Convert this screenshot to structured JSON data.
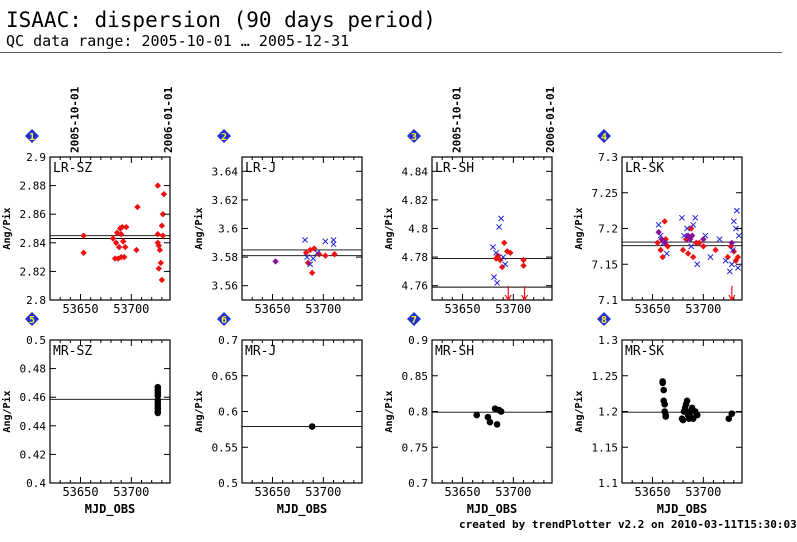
{
  "header": {
    "title": "ISAAC: dispersion (90 days period)",
    "subtitle": "QC data range: 2005-10-01 … 2005-12-31"
  },
  "footer": {
    "credit": "created by trendPlotter v2.2 on 2010-03-11T15:30:03"
  },
  "colors": {
    "red": "#ee1111",
    "blue": "#2222dd",
    "purple": "#881199",
    "black": "#000000",
    "badge": "#1f2fd0",
    "badge_text": "#ffee33"
  },
  "chart_data": {
    "type": "scatter",
    "grid": false,
    "date_markers": [
      {
        "label": "2005-10-01",
        "mjd": 53644
      },
      {
        "label": "2006-01-01",
        "mjd": 53736
      }
    ],
    "panels": [
      {
        "number": "1",
        "label": "LR-SZ",
        "xlabel": "",
        "ylabel": "Ang/Pix",
        "xlim": [
          53620,
          53738
        ],
        "ylim": [
          2.8,
          2.9
        ],
        "xticks": [
          "53650",
          "53700"
        ],
        "yticks": [
          "2.8",
          "2.82",
          "2.84",
          "2.86",
          "2.88",
          "2.9"
        ],
        "show_date_markers": true,
        "ref_lines": [
          2.843,
          2.845
        ],
        "series": [
          {
            "marker": "diamond",
            "color": "red",
            "x": [
              53653,
              53653,
              53682,
              53684,
              53685,
              53686,
              53687,
              53688,
              53689,
              53690,
              53690,
              53691,
              53692,
              53693,
              53694,
              53695,
              53705,
              53706,
              53726,
              53726,
              53727,
              53728,
              53729,
              53730,
              53730,
              53731,
              53732,
              53731,
              53727,
              53726
            ],
            "y": [
              2.845,
              2.833,
              2.843,
              2.829,
              2.84,
              2.847,
              2.829,
              2.837,
              2.85,
              2.83,
              2.846,
              2.851,
              2.841,
              2.83,
              2.837,
              2.851,
              2.835,
              2.865,
              2.88,
              2.84,
              2.838,
              2.835,
              2.826,
              2.814,
              2.852,
              2.845,
              2.874,
              2.86,
              2.822,
              2.846
            ]
          }
        ]
      },
      {
        "number": "2",
        "label": "LR-J",
        "xlabel": "",
        "ylabel": "Ang/Pix",
        "xlim": [
          53620,
          53738
        ],
        "ylim": [
          3.55,
          3.65
        ],
        "xticks": [
          "53650",
          "53700"
        ],
        "yticks": [
          "3.56",
          "3.58",
          "3.6",
          "3.62",
          "3.64"
        ],
        "show_date_markers": false,
        "ref_lines": [
          3.581,
          3.585
        ],
        "series": [
          {
            "marker": "diamond",
            "color": "red",
            "x": [
              53683,
              53685,
              53687,
              53689,
              53691,
              53696,
              53702,
              53711
            ],
            "y": [
              3.583,
              3.576,
              3.585,
              3.569,
              3.586,
              3.582,
              3.581,
              3.582
            ]
          },
          {
            "marker": "cross",
            "color": "blue",
            "x": [
              53682,
              53684,
              53687,
              53690,
              53694,
              53702,
              53710,
              53710
            ],
            "y": [
              3.592,
              3.58,
              3.575,
              3.579,
              3.583,
              3.591,
              3.589,
              3.592
            ]
          },
          {
            "marker": "diamond",
            "color": "purple",
            "x": [
              53653
            ],
            "y": [
              3.577
            ]
          }
        ]
      },
      {
        "number": "3",
        "label": "LR-SH",
        "xlabel": "",
        "ylabel": "Ang/Pix",
        "xlim": [
          53620,
          53738
        ],
        "ylim": [
          4.75,
          4.85
        ],
        "xticks": [
          "53650",
          "53700"
        ],
        "yticks": [
          "4.76",
          "4.78",
          "4.8",
          "4.82",
          "4.84"
        ],
        "show_date_markers": true,
        "ref_lines": [
          4.759,
          4.779
        ],
        "series": [
          {
            "marker": "diamond",
            "color": "red",
            "x": [
              53683,
              53685,
              53687,
              53689,
              53691,
              53694,
              53697,
              53710,
              53710
            ],
            "y": [
              4.779,
              4.781,
              4.778,
              4.773,
              4.79,
              4.784,
              4.783,
              4.778,
              4.774
            ]
          },
          {
            "marker": "cross",
            "color": "blue",
            "x": [
              53680,
              53681,
              53683,
              53684,
              53686,
              53688,
              53690,
              53692
            ],
            "y": [
              4.787,
              4.766,
              4.783,
              4.762,
              4.801,
              4.807,
              4.78,
              4.775
            ]
          }
        ],
        "arrows": [
          {
            "x": 53695,
            "color": "red"
          },
          {
            "x": 53711,
            "color": "red"
          }
        ]
      },
      {
        "number": "4",
        "label": "LR-SK",
        "xlabel": "",
        "ylabel": "Ang/Pix",
        "xlim": [
          53620,
          53738
        ],
        "ylim": [
          7.1,
          7.3
        ],
        "xticks": [
          "53650",
          "53700"
        ],
        "yticks": [
          "7.1",
          "7.15",
          "7.2",
          "7.25",
          "7.3"
        ],
        "show_date_markers": false,
        "ref_lines": [
          7.176,
          7.181
        ],
        "series": [
          {
            "marker": "diamond",
            "color": "red",
            "x": [
              53655,
              53658,
              53660,
              53662,
              53663,
              53665,
              53680,
              53683,
              53685,
              53688,
              53690,
              53693,
              53696,
              53700,
              53712,
              53724,
              53727,
              53730,
              53732,
              53734
            ],
            "y": [
              7.18,
              7.17,
              7.16,
              7.21,
              7.185,
              7.175,
              7.17,
              7.185,
              7.165,
              7.2,
              7.16,
              7.18,
              7.18,
              7.175,
              7.17,
              7.16,
              7.175,
              7.168,
              7.155,
              7.16
            ]
          },
          {
            "marker": "cross",
            "color": "blue",
            "x": [
              53656,
              53658,
              53661,
              53664,
              53679,
              53681,
              53684,
              53686,
              53688,
              53690,
              53692,
              53694,
              53702,
              53707,
              53716,
              53722,
              53726,
              53728,
              53730,
              53732,
              53733,
              53734,
              53735,
              53729
            ],
            "y": [
              7.205,
              7.19,
              7.18,
              7.165,
              7.215,
              7.19,
              7.2,
              7.185,
              7.175,
              7.205,
              7.215,
              7.15,
              7.19,
              7.16,
              7.185,
              7.155,
              7.14,
              7.15,
              7.21,
              7.2,
              7.225,
              7.145,
              7.19,
              7.17
            ]
          },
          {
            "marker": "diamond",
            "color": "purple",
            "x": [
              53656,
              53659,
              53662,
              53685,
              53687,
              53689,
              53700,
              53728
            ],
            "y": [
              7.195,
              7.185,
              7.18,
              7.19,
              7.185,
              7.19,
              7.185,
              7.18
            ]
          }
        ],
        "arrows": [
          {
            "x": 53728,
            "color": "red"
          }
        ]
      },
      {
        "number": "5",
        "label": "MR-SZ",
        "xlabel": "MJD_OBS",
        "ylabel": "Ang/Pix",
        "xlim": [
          53620,
          53738
        ],
        "ylim": [
          0.4,
          0.5
        ],
        "xticks": [
          "53650",
          "53700"
        ],
        "yticks": [
          "0.4",
          "0.42",
          "0.44",
          "0.46",
          "0.48",
          "0.5"
        ],
        "show_date_markers": false,
        "ref_lines": [
          0.4585
        ],
        "series": [
          {
            "marker": "circle",
            "color": "black",
            "x": [
              53726,
              53726,
              53726,
              53726,
              53726,
              53726,
              53726,
              53726,
              53726,
              53726
            ],
            "y": [
              0.467,
              0.465,
              0.463,
              0.461,
              0.458,
              0.456,
              0.454,
              0.452,
              0.45,
              0.449
            ]
          }
        ]
      },
      {
        "number": "6",
        "label": "MR-J",
        "xlabel": "MJD_OBS",
        "ylabel": "Ang/Pix",
        "xlim": [
          53620,
          53738
        ],
        "ylim": [
          0.5,
          0.7
        ],
        "xticks": [
          "53650",
          "53700"
        ],
        "yticks": [
          "0.5",
          "0.55",
          "0.6",
          "0.65",
          "0.7"
        ],
        "show_date_markers": false,
        "ref_lines": [
          0.579
        ],
        "series": [
          {
            "marker": "circle",
            "color": "black",
            "x": [
              53689
            ],
            "y": [
              0.579
            ]
          }
        ]
      },
      {
        "number": "7",
        "label": "MR-SH",
        "xlabel": "MJD_OBS",
        "ylabel": "Ang/Pix",
        "xlim": [
          53620,
          53738
        ],
        "ylim": [
          0.7,
          0.9
        ],
        "xticks": [
          "53650",
          "53700"
        ],
        "yticks": [
          "0.7",
          "0.75",
          "0.8",
          "0.85",
          "0.9"
        ],
        "show_date_markers": false,
        "ref_lines": [
          0.799
        ],
        "series": [
          {
            "marker": "circle",
            "color": "black",
            "x": [
              53664,
              53675,
              53677,
              53682,
              53684,
              53686,
              53688
            ],
            "y": [
              0.795,
              0.792,
              0.785,
              0.804,
              0.782,
              0.802,
              0.8
            ]
          }
        ]
      },
      {
        "number": "8",
        "label": "MR-SK",
        "xlabel": "MJD_OBS",
        "ylabel": "Ang/Pix",
        "xlim": [
          53620,
          53738
        ],
        "ylim": [
          1.1,
          1.3
        ],
        "xticks": [
          "53650",
          "53700"
        ],
        "yticks": [
          "1.1",
          "1.15",
          "1.2",
          "1.25",
          "1.3"
        ],
        "show_date_markers": false,
        "ref_lines": [
          1.199
        ],
        "series": [
          {
            "marker": "circle",
            "color": "black",
            "x": [
              53660,
              53660,
              53661,
              53661,
              53662,
              53662,
              53663,
              53663,
              53679,
              53680,
              53681,
              53682,
              53683,
              53684,
              53685,
              53686,
              53687,
              53688,
              53689,
              53690,
              53692,
              53694,
              53725,
              53728
            ],
            "y": [
              1.242,
              1.24,
              1.23,
              1.215,
              1.21,
              1.2,
              1.195,
              1.193,
              1.19,
              1.188,
              1.2,
              1.205,
              1.21,
              1.215,
              1.195,
              1.19,
              1.2,
              1.192,
              1.205,
              1.19,
              1.2,
              1.195,
              1.19,
              1.197
            ]
          }
        ]
      }
    ]
  }
}
